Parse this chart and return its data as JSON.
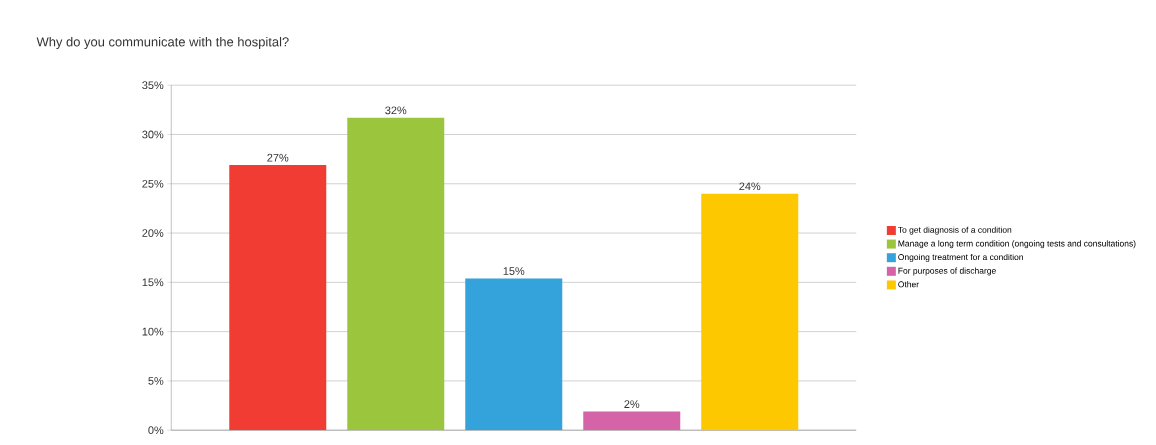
{
  "chart_data": {
    "type": "bar",
    "title": "Why do you communicate with the hospital?",
    "categories": [
      null
    ],
    "series": [
      {
        "name": "To get diagnosis of a condition",
        "color": "#f03c32",
        "values": [
          26.9
        ],
        "value_labels": [
          "27%"
        ]
      },
      {
        "name": "Manage a long term condition (ongoing tests and consultations)",
        "color": "#9bc53c",
        "values": [
          31.7
        ],
        "value_labels": [
          "32%"
        ]
      },
      {
        "name": "Ongoing treatment for a condition",
        "color": "#34a3dc",
        "values": [
          15.4
        ],
        "value_labels": [
          "15%"
        ]
      },
      {
        "name": "For purposes of discharge",
        "color": "#d463a8",
        "values": [
          1.9
        ],
        "value_labels": [
          "2%"
        ]
      },
      {
        "name": "Other",
        "color": "#fdc800",
        "values": [
          24.0
        ],
        "value_labels": [
          "24%"
        ]
      }
    ],
    "ylim": [
      0,
      35
    ],
    "yticks": [
      {
        "value": 0,
        "label": "0%"
      },
      {
        "value": 5,
        "label": "5%"
      },
      {
        "value": 10,
        "label": "10%"
      },
      {
        "value": 15,
        "label": "15%"
      },
      {
        "value": 20,
        "label": "20%"
      },
      {
        "value": 25,
        "label": "25%"
      },
      {
        "value": 30,
        "label": "30%"
      },
      {
        "value": 35,
        "label": "35%"
      }
    ],
    "grid": "y",
    "legend": "right"
  }
}
